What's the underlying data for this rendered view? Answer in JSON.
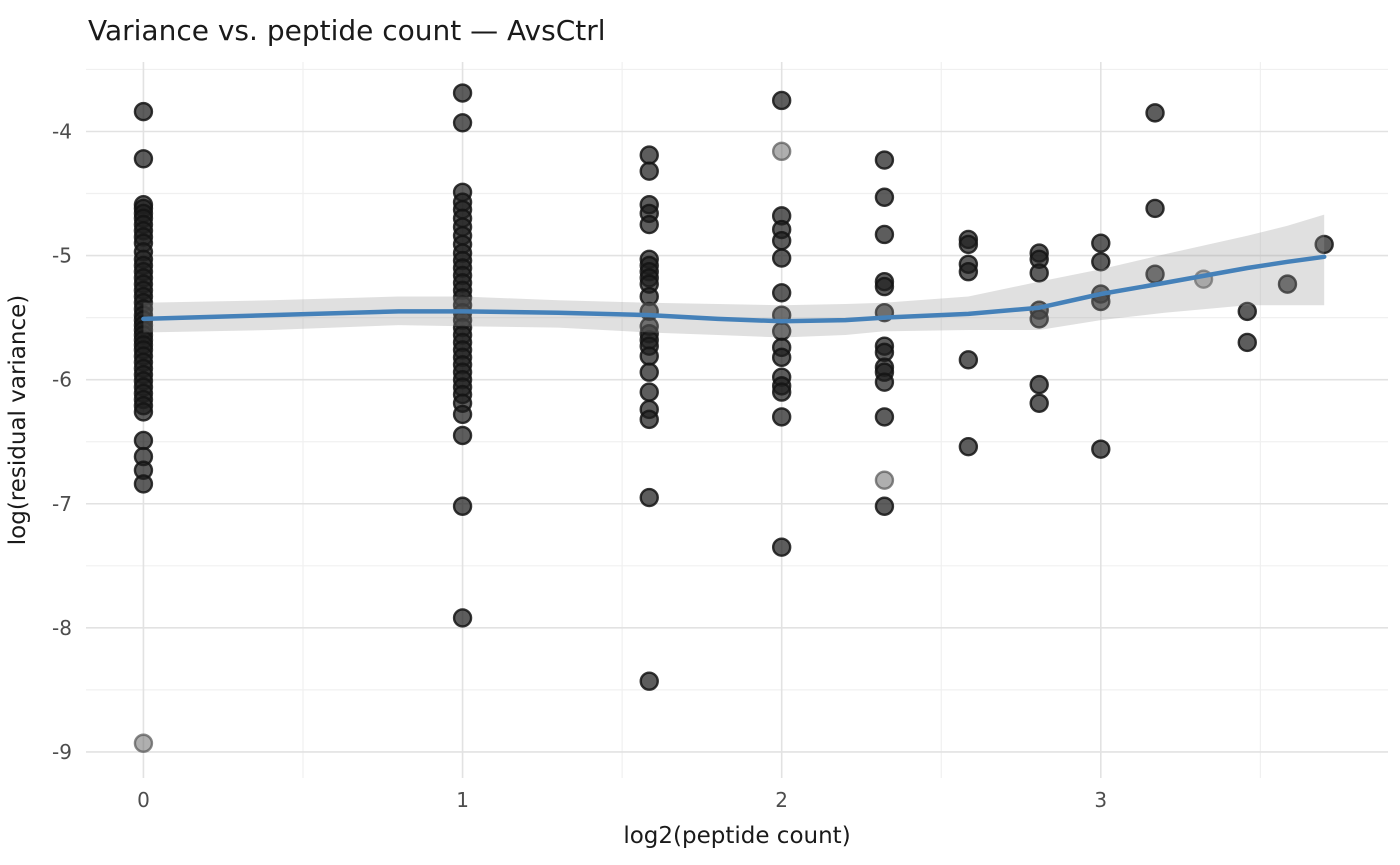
{
  "chart_data": {
    "type": "scatter",
    "title": "Variance vs. peptide count — AvsCtrl",
    "xlabel": "log2(peptide count)",
    "ylabel": "log(residual variance)",
    "x_ticks": [
      0,
      1,
      2,
      3
    ],
    "y_ticks": [
      -4,
      -5,
      -6,
      -7,
      -8,
      -9
    ],
    "x_minor_ticks": [
      0.5,
      1.5,
      2.5,
      3.5
    ],
    "y_minor_ticks": [
      -3.5,
      -4.5,
      -5.5,
      -6.5,
      -7.5,
      -8.5
    ],
    "xlim": [
      -0.18,
      3.9
    ],
    "ylim": [
      -9.21,
      -3.44
    ],
    "grid": "on",
    "legend": "none",
    "colors": {
      "point": "#1f1f1f",
      "point_stroke": "#141414",
      "muted_point": "#6e6e6e",
      "smooth_line": "#4581b9",
      "ribbon": "#999999",
      "grid_major": "#e2e2e2",
      "grid_minor": "#f0f0f0",
      "tick_text": "#4d4d4d",
      "title_text": "#1a1a1a"
    },
    "columns": [
      {
        "x": 0,
        "values": [
          -3.84,
          -4.22,
          -4.59,
          -4.62,
          -4.66,
          -4.7,
          -4.75,
          -4.8,
          -4.85,
          -4.9,
          -4.97,
          -5.03,
          -5.08,
          -5.13,
          -5.18,
          -5.23,
          -5.28,
          -5.33,
          -5.38,
          -5.43,
          -5.48,
          -5.52,
          -5.56,
          -5.6,
          -5.64,
          -5.68,
          -5.72,
          -5.76,
          -5.81,
          -5.86,
          -5.91,
          -5.96,
          -6.01,
          -6.06,
          -6.11,
          -6.16,
          -6.21,
          -6.26,
          -6.49,
          -6.62,
          -6.73,
          -6.84
        ]
      },
      {
        "x": 1,
        "values": [
          -3.69,
          -3.93,
          -4.49,
          -4.57,
          -4.63,
          -4.7,
          -4.77,
          -4.84,
          -4.91,
          -4.98,
          -5.04,
          -5.1,
          -5.16,
          -5.22,
          -5.28,
          -5.34,
          -5.4,
          -5.46,
          -5.52,
          -5.58,
          -5.64,
          -5.7,
          -5.76,
          -5.82,
          -5.88,
          -5.94,
          -6.0,
          -6.06,
          -6.12,
          -6.19,
          -6.28,
          -6.45,
          -7.02,
          -7.92
        ]
      },
      {
        "x": 1.585,
        "values": [
          -4.19,
          -4.32,
          -4.59,
          -4.66,
          -4.75,
          -5.03,
          -5.08,
          -5.13,
          -5.18,
          -5.23,
          -5.33,
          -5.45,
          -5.57,
          -5.63,
          -5.68,
          -5.73,
          -5.81,
          -5.94,
          -6.1,
          -6.24,
          -6.32,
          -6.95,
          -8.43
        ]
      },
      {
        "x": 2,
        "values": [
          -3.75,
          -4.68,
          -4.79,
          -4.88,
          -5.02,
          -5.3,
          -5.48,
          -5.61,
          -5.74,
          -5.82,
          -5.98,
          -6.05,
          -6.1,
          -6.3,
          -7.35
        ]
      },
      {
        "x": 2.322,
        "values": [
          -4.23,
          -4.53,
          -4.83,
          -5.21,
          -5.25,
          -5.46,
          -5.73,
          -5.78,
          -5.9,
          -5.94,
          -6.02,
          -6.3,
          -7.02
        ]
      },
      {
        "x": 2.585,
        "values": [
          -4.87,
          -4.91,
          -5.07,
          -5.13,
          -5.84,
          -6.54
        ]
      },
      {
        "x": 2.807,
        "values": [
          -4.98,
          -5.03,
          -5.14,
          -5.44,
          -5.51,
          -6.04,
          -6.19
        ]
      },
      {
        "x": 3,
        "values": [
          -4.9,
          -5.05,
          -5.31,
          -5.37,
          -6.56
        ]
      },
      {
        "x": 3.17,
        "values": [
          -3.85,
          -4.62,
          -5.15
        ]
      },
      {
        "x": 3.459,
        "values": [
          -5.45,
          -5.7
        ]
      },
      {
        "x": 3.585,
        "values": [
          -5.23
        ]
      },
      {
        "x": 3.7,
        "values": [
          -4.91
        ]
      }
    ],
    "muted_points": [
      {
        "x": 0,
        "y": -8.93
      },
      {
        "x": 2,
        "y": -4.16
      },
      {
        "x": 2.322,
        "y": -6.81
      },
      {
        "x": 3.322,
        "y": -5.19
      }
    ],
    "smooth": {
      "x": [
        0,
        0.4,
        0.8,
        1.0,
        1.3,
        1.585,
        1.8,
        2.0,
        2.2,
        2.322,
        2.585,
        2.807,
        3.0,
        3.2,
        3.459,
        3.585,
        3.7
      ],
      "y": [
        -5.51,
        -5.48,
        -5.45,
        -5.45,
        -5.46,
        -5.48,
        -5.51,
        -5.53,
        -5.52,
        -5.5,
        -5.47,
        -5.42,
        -5.31,
        -5.22,
        -5.1,
        -5.05,
        -5.01
      ],
      "upper": [
        -5.38,
        -5.36,
        -5.33,
        -5.33,
        -5.36,
        -5.38,
        -5.39,
        -5.4,
        -5.39,
        -5.38,
        -5.33,
        -5.21,
        -5.11,
        -4.99,
        -4.84,
        -4.76,
        -4.67
      ],
      "lower": [
        -5.62,
        -5.6,
        -5.56,
        -5.57,
        -5.58,
        -5.62,
        -5.64,
        -5.66,
        -5.64,
        -5.61,
        -5.6,
        -5.6,
        -5.52,
        -5.46,
        -5.4,
        -5.4,
        -5.4
      ]
    }
  }
}
